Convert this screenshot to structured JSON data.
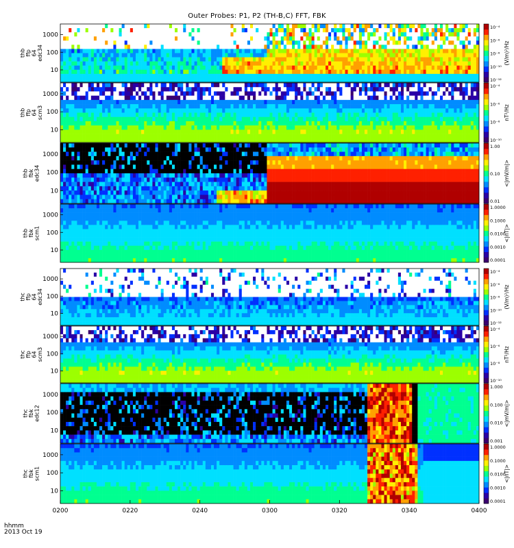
{
  "title": "Outer Probes: P1, P2 (TH-B,C) FFT, FBK",
  "footer": {
    "line1": "hhmm",
    "line2": "2013 Oct 19"
  },
  "colors": {
    "scale": [
      "#3b0070",
      "#2a00a6",
      "#0030ff",
      "#008cff",
      "#00e0ff",
      "#00ff90",
      "#9cff00",
      "#fff000",
      "#ffa000",
      "#ff2000",
      "#b00000"
    ],
    "dropout": "#000000",
    "background": "#ffffff"
  },
  "chart_data": {
    "type": "heatmap",
    "title": "Outer Probes: P1, P2 (TH-B,C) FFT, FBK",
    "x_ticks": [
      "0200",
      "0220",
      "0240",
      "0300",
      "0320",
      "0340",
      "0400"
    ],
    "x_range": [
      "02:00",
      "04:00"
    ],
    "panels": [
      {
        "id": "thb-ffp-e",
        "label": [
          "thb",
          "ffp",
          "64",
          "edc34"
        ],
        "y_ticks": [
          "1000",
          "100",
          "10"
        ],
        "y_log": true,
        "colorbar": {
          "ticks": [
            "10⁻⁴",
            "10⁻⁶",
            "10⁻⁸",
            "10⁻¹⁰",
            "10⁻¹²"
          ],
          "unit": "(V/m)²/Hz"
        }
      },
      {
        "id": "thb-ffp-b",
        "label": [
          "thb",
          "ffp",
          "64",
          "scm3"
        ],
        "y_ticks": [
          "1000",
          "100",
          "10"
        ],
        "y_log": true,
        "colorbar": {
          "ticks": [
            "10⁻⁴",
            "10⁻⁶",
            "10⁻⁸",
            "10⁻¹⁰"
          ],
          "unit": "nT²/Hz"
        }
      },
      {
        "id": "thb-fbk-e",
        "label": [
          "thb",
          "fbk",
          "edc34"
        ],
        "y_ticks": [
          "1000",
          "100",
          "10"
        ],
        "y_log": true,
        "colorbar": {
          "ticks": [
            "1.00",
            "0.10",
            "0.01"
          ],
          "unit": "<|mV/m|>"
        }
      },
      {
        "id": "thb-fbk-b",
        "label": [
          "thb",
          "fbk",
          "scm1"
        ],
        "y_ticks": [
          "1000",
          "100",
          "10"
        ],
        "y_log": true,
        "colorbar": {
          "ticks": [
            "1.0000",
            "0.1000",
            "0.0100",
            "0.0010",
            "0.0001"
          ],
          "unit": "<|nT|>"
        }
      },
      {
        "id": "thc-ffp-e",
        "label": [
          "thc",
          "ffp",
          "64",
          "edc34"
        ],
        "y_ticks": [
          "1000",
          "100",
          "10"
        ],
        "y_log": true,
        "colorbar": {
          "ticks": [
            "10⁻⁴",
            "10⁻⁶",
            "10⁻⁸",
            "10⁻¹⁰",
            "10⁻¹²"
          ],
          "unit": "(V/m)²/Hz"
        }
      },
      {
        "id": "thc-ffp-b",
        "label": [
          "thc",
          "ffp",
          "64",
          "scm3"
        ],
        "y_ticks": [
          "1000",
          "100",
          "10"
        ],
        "y_log": true,
        "colorbar": {
          "ticks": [
            "10⁻⁴",
            "10⁻⁶",
            "10⁻⁸",
            "10⁻¹⁰"
          ],
          "unit": "nT²/Hz"
        }
      },
      {
        "id": "thc-fbk-e",
        "label": [
          "thc",
          "fbk",
          "edc12"
        ],
        "y_ticks": [
          "1000",
          "100",
          "10"
        ],
        "y_log": true,
        "colorbar": {
          "ticks": [
            "1.000",
            "0.100",
            "0.010",
            "0.001"
          ],
          "unit": "<|mV/m|>"
        }
      },
      {
        "id": "thc-fbk-b",
        "label": [
          "thc",
          "fbk",
          "scm1"
        ],
        "y_ticks": [
          "1000",
          "100",
          "10"
        ],
        "y_log": true,
        "colorbar": {
          "ticks": [
            "1.0000",
            "0.1000",
            "0.0100",
            "0.0010",
            "0.0001"
          ],
          "unit": "<|nT|>"
        }
      }
    ]
  }
}
